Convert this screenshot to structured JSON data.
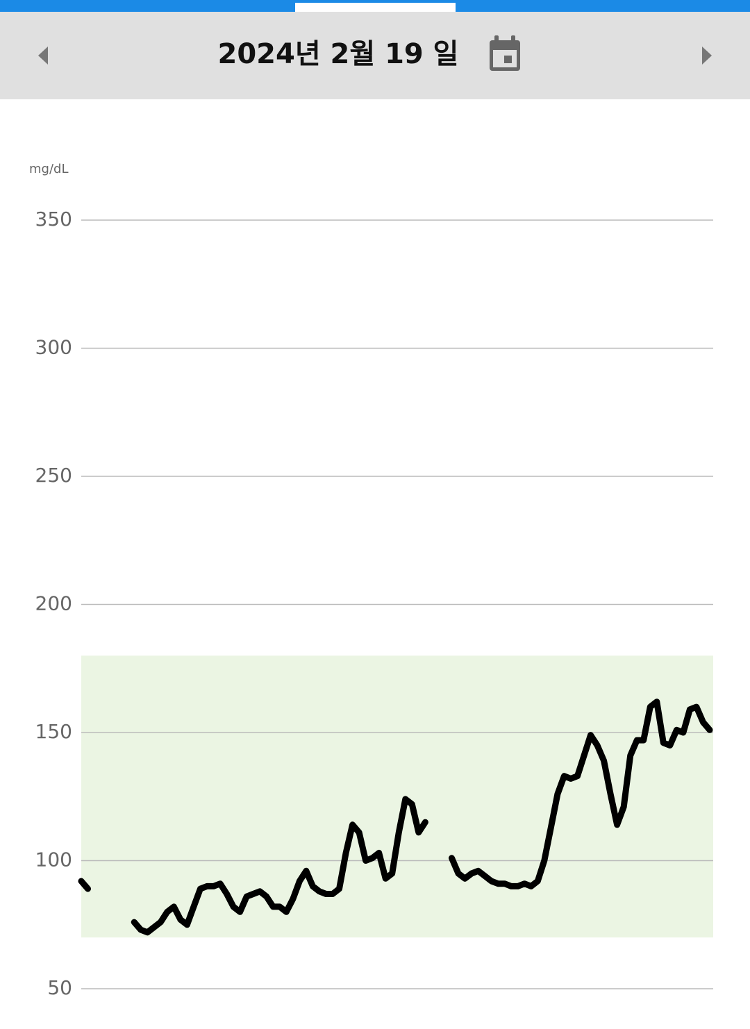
{
  "header": {
    "date": "2024년 2월 19 일"
  },
  "chart_data": {
    "type": "line",
    "y_label": "mg/dL",
    "ylim": [
      50,
      350
    ],
    "yticks": [
      50,
      100,
      150,
      200,
      250,
      300,
      350
    ],
    "grid": true,
    "target_range": [
      70,
      180
    ],
    "target_color": "#ebf5e3",
    "series": [
      {
        "color": "#000000",
        "values": [
          92,
          89,
          null,
          null,
          null,
          null,
          null,
          null,
          76,
          73,
          72,
          74,
          76,
          80,
          82,
          77,
          75,
          82,
          89,
          90,
          90,
          91,
          87,
          82,
          80,
          86,
          87,
          88,
          86,
          82,
          82,
          80,
          85,
          92,
          96,
          90,
          88,
          87,
          87,
          89,
          103,
          114,
          111,
          100,
          101,
          103,
          93,
          95,
          111,
          124,
          122,
          111,
          115,
          null,
          null,
          null,
          101,
          95,
          93,
          95,
          96,
          94,
          92,
          91,
          91,
          90,
          90,
          91,
          90,
          92,
          100,
          113,
          126,
          133,
          132,
          133,
          141,
          149,
          145,
          139,
          126,
          114,
          121,
          141,
          147,
          147,
          160,
          162,
          146,
          145,
          151,
          150,
          159,
          160,
          154,
          151
        ]
      }
    ]
  }
}
